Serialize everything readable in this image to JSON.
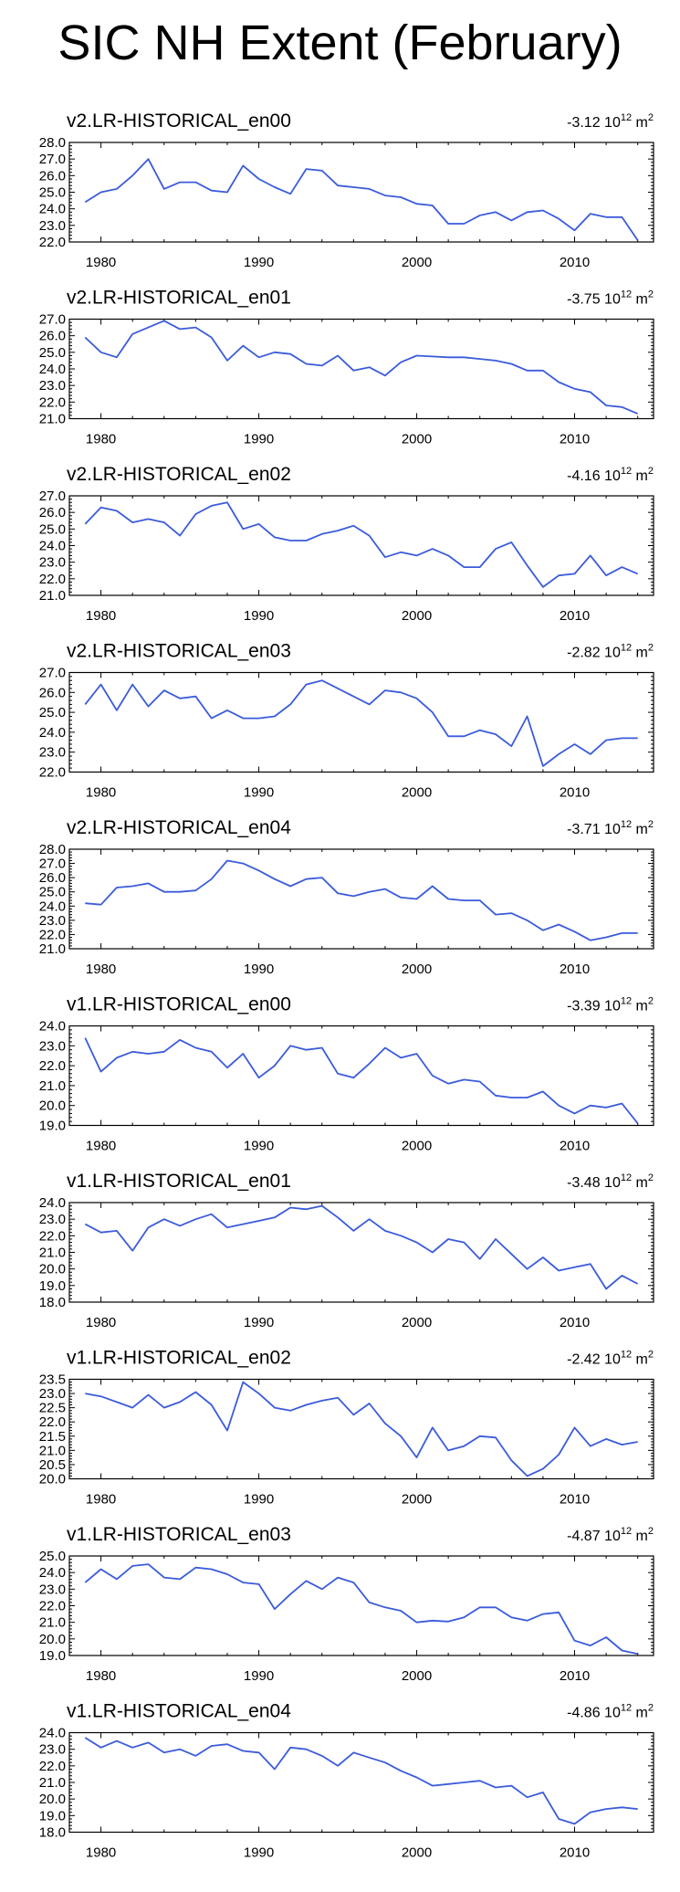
{
  "figure_title": "SIC NH Extent (February)",
  "colors": {
    "series": "#3b5bdb",
    "axes": "#000000"
  },
  "chart_data": [
    {
      "type": "line",
      "title": "v2.LR-HISTORICAL_en00",
      "trend": {
        "value": "-3.12",
        "exp": "12",
        "unit": "10",
        "unit_tail": "m",
        "unit_exp": "2"
      },
      "xlim": [
        1978,
        2015
      ],
      "xticks": [
        1980,
        1990,
        2000,
        2010
      ],
      "ylim": [
        22.0,
        28.0
      ],
      "yticks": [
        "22.0",
        "23.0",
        "24.0",
        "25.0",
        "26.0",
        "27.0",
        "28.0"
      ],
      "x": [
        1979,
        1980,
        1981,
        1982,
        1983,
        1984,
        1985,
        1986,
        1987,
        1988,
        1989,
        1990,
        1991,
        1992,
        1993,
        1994,
        1995,
        1996,
        1997,
        1998,
        1999,
        2000,
        2001,
        2002,
        2003,
        2004,
        2005,
        2006,
        2007,
        2008,
        2009,
        2010,
        2011,
        2012,
        2013,
        2014
      ],
      "values": [
        24.4,
        25.0,
        25.2,
        26.0,
        27.0,
        25.2,
        25.6,
        25.6,
        25.1,
        25.0,
        26.6,
        25.8,
        25.3,
        24.9,
        26.4,
        26.3,
        25.4,
        25.3,
        25.2,
        24.8,
        24.7,
        24.3,
        24.2,
        23.1,
        23.1,
        23.6,
        23.8,
        23.3,
        23.8,
        23.9,
        23.4,
        22.7,
        23.7,
        23.5,
        23.5,
        22.1
      ]
    },
    {
      "type": "line",
      "title": "v2.LR-HISTORICAL_en01",
      "trend": {
        "value": "-3.75",
        "exp": "12",
        "unit": "10",
        "unit_tail": "m",
        "unit_exp": "2"
      },
      "xlim": [
        1978,
        2015
      ],
      "xticks": [
        1980,
        1990,
        2000,
        2010
      ],
      "ylim": [
        21.0,
        27.0
      ],
      "yticks": [
        "21.0",
        "22.0",
        "23.0",
        "24.0",
        "25.0",
        "26.0",
        "27.0"
      ],
      "x": [
        1979,
        1980,
        1981,
        1982,
        1983,
        1984,
        1985,
        1986,
        1987,
        1988,
        1989,
        1990,
        1991,
        1992,
        1993,
        1994,
        1995,
        1996,
        1997,
        1998,
        1999,
        2000,
        2001,
        2002,
        2003,
        2004,
        2005,
        2006,
        2007,
        2008,
        2009,
        2010,
        2011,
        2012,
        2013,
        2014
      ],
      "values": [
        25.9,
        25.0,
        24.7,
        26.1,
        26.5,
        26.9,
        26.4,
        26.5,
        25.9,
        24.5,
        25.4,
        24.7,
        25.0,
        24.9,
        24.3,
        24.2,
        24.8,
        23.9,
        24.1,
        23.6,
        24.4,
        24.8,
        24.75,
        24.7,
        24.7,
        24.6,
        24.5,
        24.3,
        23.9,
        23.9,
        23.2,
        22.8,
        22.6,
        21.8,
        21.7,
        21.3
      ]
    },
    {
      "type": "line",
      "title": "v2.LR-HISTORICAL_en02",
      "trend": {
        "value": "-4.16",
        "exp": "12",
        "unit": "10",
        "unit_tail": "m",
        "unit_exp": "2"
      },
      "xlim": [
        1978,
        2015
      ],
      "xticks": [
        1980,
        1990,
        2000,
        2010
      ],
      "ylim": [
        21.0,
        27.0
      ],
      "yticks": [
        "21.0",
        "22.0",
        "23.0",
        "24.0",
        "25.0",
        "26.0",
        "27.0"
      ],
      "x": [
        1979,
        1980,
        1981,
        1982,
        1983,
        1984,
        1985,
        1986,
        1987,
        1988,
        1989,
        1990,
        1991,
        1992,
        1993,
        1994,
        1995,
        1996,
        1997,
        1998,
        1999,
        2000,
        2001,
        2002,
        2003,
        2004,
        2005,
        2006,
        2007,
        2008,
        2009,
        2010,
        2011,
        2012,
        2013,
        2014
      ],
      "values": [
        25.3,
        26.3,
        26.1,
        25.4,
        25.6,
        25.4,
        24.6,
        25.9,
        26.4,
        26.6,
        25.0,
        25.3,
        24.5,
        24.3,
        24.3,
        24.7,
        24.9,
        25.2,
        24.6,
        23.3,
        23.6,
        23.4,
        23.8,
        23.4,
        22.7,
        22.7,
        23.8,
        24.2,
        22.8,
        21.5,
        22.2,
        22.3,
        23.4,
        22.2,
        22.7,
        22.3
      ]
    },
    {
      "type": "line",
      "title": "v2.LR-HISTORICAL_en03",
      "trend": {
        "value": "-2.82",
        "exp": "12",
        "unit": "10",
        "unit_tail": "m",
        "unit_exp": "2"
      },
      "xlim": [
        1978,
        2015
      ],
      "xticks": [
        1980,
        1990,
        2000,
        2010
      ],
      "ylim": [
        22.0,
        27.0
      ],
      "yticks": [
        "22.0",
        "23.0",
        "24.0",
        "25.0",
        "26.0",
        "27.0"
      ],
      "x": [
        1979,
        1980,
        1981,
        1982,
        1983,
        1984,
        1985,
        1986,
        1987,
        1988,
        1989,
        1990,
        1991,
        1992,
        1993,
        1994,
        1995,
        1996,
        1997,
        1998,
        1999,
        2000,
        2001,
        2002,
        2003,
        2004,
        2005,
        2006,
        2007,
        2008,
        2009,
        2010,
        2011,
        2012,
        2013,
        2014
      ],
      "values": [
        25.4,
        26.4,
        25.1,
        26.4,
        25.3,
        26.1,
        25.7,
        25.8,
        24.7,
        25.1,
        24.7,
        24.7,
        24.8,
        25.4,
        26.4,
        26.6,
        26.2,
        25.8,
        25.4,
        26.1,
        26.0,
        25.7,
        25.0,
        23.8,
        23.8,
        24.1,
        23.9,
        23.3,
        24.8,
        22.3,
        22.9,
        23.4,
        22.9,
        23.6,
        23.7,
        23.7
      ]
    },
    {
      "type": "line",
      "title": "v2.LR-HISTORICAL_en04",
      "trend": {
        "value": "-3.71",
        "exp": "12",
        "unit": "10",
        "unit_tail": "m",
        "unit_exp": "2"
      },
      "xlim": [
        1978,
        2015
      ],
      "xticks": [
        1980,
        1990,
        2000,
        2010
      ],
      "ylim": [
        21.0,
        28.0
      ],
      "yticks": [
        "21.0",
        "22.0",
        "23.0",
        "24.0",
        "25.0",
        "26.0",
        "27.0",
        "28.0"
      ],
      "x": [
        1979,
        1980,
        1981,
        1982,
        1983,
        1984,
        1985,
        1986,
        1987,
        1988,
        1989,
        1990,
        1991,
        1992,
        1993,
        1994,
        1995,
        1996,
        1997,
        1998,
        1999,
        2000,
        2001,
        2002,
        2003,
        2004,
        2005,
        2006,
        2007,
        2008,
        2009,
        2010,
        2011,
        2012,
        2013,
        2014
      ],
      "values": [
        24.2,
        24.1,
        25.3,
        25.4,
        25.6,
        25.0,
        25.0,
        25.1,
        25.9,
        27.2,
        27.0,
        26.5,
        25.9,
        25.4,
        25.9,
        26.0,
        24.9,
        24.7,
        25.0,
        25.2,
        24.6,
        24.5,
        25.4,
        24.5,
        24.4,
        24.4,
        23.4,
        23.5,
        23.0,
        22.3,
        22.7,
        22.2,
        21.6,
        21.8,
        22.1,
        22.1
      ]
    },
    {
      "type": "line",
      "title": "v1.LR-HISTORICAL_en00",
      "trend": {
        "value": "-3.39",
        "exp": "12",
        "unit": "10",
        "unit_tail": "m",
        "unit_exp": "2"
      },
      "xlim": [
        1978,
        2015
      ],
      "xticks": [
        1980,
        1990,
        2000,
        2010
      ],
      "ylim": [
        19.0,
        24.0
      ],
      "yticks": [
        "19.0",
        "20.0",
        "21.0",
        "22.0",
        "23.0",
        "24.0"
      ],
      "x": [
        1979,
        1980,
        1981,
        1982,
        1983,
        1984,
        1985,
        1986,
        1987,
        1988,
        1989,
        1990,
        1991,
        1992,
        1993,
        1994,
        1995,
        1996,
        1997,
        1998,
        1999,
        2000,
        2001,
        2002,
        2003,
        2004,
        2005,
        2006,
        2007,
        2008,
        2009,
        2010,
        2011,
        2012,
        2013,
        2014
      ],
      "values": [
        23.4,
        21.7,
        22.4,
        22.7,
        22.6,
        22.7,
        23.3,
        22.9,
        22.7,
        21.9,
        22.6,
        21.4,
        22.0,
        23.0,
        22.8,
        22.9,
        21.6,
        21.4,
        22.1,
        22.9,
        22.4,
        22.6,
        21.5,
        21.1,
        21.3,
        21.2,
        20.5,
        20.4,
        20.4,
        20.7,
        20.0,
        19.6,
        20.0,
        19.9,
        20.1,
        19.1
      ]
    },
    {
      "type": "line",
      "title": "v1.LR-HISTORICAL_en01",
      "trend": {
        "value": "-3.48",
        "exp": "12",
        "unit": "10",
        "unit_tail": "m",
        "unit_exp": "2"
      },
      "xlim": [
        1978,
        2015
      ],
      "xticks": [
        1980,
        1990,
        2000,
        2010
      ],
      "ylim": [
        18.0,
        24.0
      ],
      "yticks": [
        "18.0",
        "19.0",
        "20.0",
        "21.0",
        "22.0",
        "23.0",
        "24.0"
      ],
      "x": [
        1979,
        1980,
        1981,
        1982,
        1983,
        1984,
        1985,
        1986,
        1987,
        1988,
        1989,
        1990,
        1991,
        1992,
        1993,
        1994,
        1995,
        1996,
        1997,
        1998,
        1999,
        2000,
        2001,
        2002,
        2003,
        2004,
        2005,
        2006,
        2007,
        2008,
        2009,
        2010,
        2011,
        2012,
        2013,
        2014
      ],
      "values": [
        22.7,
        22.2,
        22.3,
        21.1,
        22.5,
        23.0,
        22.6,
        23.0,
        23.3,
        22.5,
        22.7,
        22.9,
        23.1,
        23.7,
        23.6,
        23.8,
        23.1,
        22.3,
        23.0,
        22.3,
        22.0,
        21.6,
        21.0,
        21.8,
        21.6,
        20.6,
        21.8,
        20.9,
        20.0,
        20.7,
        19.9,
        20.1,
        20.3,
        18.8,
        19.6,
        19.1
      ]
    },
    {
      "type": "line",
      "title": "v1.LR-HISTORICAL_en02",
      "trend": {
        "value": "-2.42",
        "exp": "12",
        "unit": "10",
        "unit_tail": "m",
        "unit_exp": "2"
      },
      "xlim": [
        1978,
        2015
      ],
      "xticks": [
        1980,
        1990,
        2000,
        2010
      ],
      "ylim": [
        20.0,
        23.5
      ],
      "yticks": [
        "20.0",
        "20.5",
        "21.0",
        "21.5",
        "22.0",
        "22.5",
        "23.0",
        "23.5"
      ],
      "x": [
        1979,
        1980,
        1981,
        1982,
        1983,
        1984,
        1985,
        1986,
        1987,
        1988,
        1989,
        1990,
        1991,
        1992,
        1993,
        1994,
        1995,
        1996,
        1997,
        1998,
        1999,
        2000,
        2001,
        2002,
        2003,
        2004,
        2005,
        2006,
        2007,
        2008,
        2009,
        2010,
        2011,
        2012,
        2013,
        2014
      ],
      "values": [
        23.0,
        22.9,
        22.7,
        22.5,
        22.95,
        22.5,
        22.7,
        23.05,
        22.6,
        21.7,
        23.4,
        23.0,
        22.5,
        22.4,
        22.6,
        22.75,
        22.85,
        22.25,
        22.65,
        21.95,
        21.5,
        20.75,
        21.8,
        21.0,
        21.15,
        21.5,
        21.45,
        20.65,
        20.1,
        20.35,
        20.85,
        21.8,
        21.15,
        21.4,
        21.2,
        21.3
      ]
    },
    {
      "type": "line",
      "title": "v1.LR-HISTORICAL_en03",
      "trend": {
        "value": "-4.87",
        "exp": "12",
        "unit": "10",
        "unit_tail": "m",
        "unit_exp": "2"
      },
      "xlim": [
        1978,
        2015
      ],
      "xticks": [
        1980,
        1990,
        2000,
        2010
      ],
      "ylim": [
        19.0,
        25.0
      ],
      "yticks": [
        "19.0",
        "20.0",
        "21.0",
        "22.0",
        "23.0",
        "24.0",
        "25.0"
      ],
      "x": [
        1979,
        1980,
        1981,
        1982,
        1983,
        1984,
        1985,
        1986,
        1987,
        1988,
        1989,
        1990,
        1991,
        1992,
        1993,
        1994,
        1995,
        1996,
        1997,
        1998,
        1999,
        2000,
        2001,
        2002,
        2003,
        2004,
        2005,
        2006,
        2007,
        2008,
        2009,
        2010,
        2011,
        2012,
        2013,
        2014
      ],
      "values": [
        23.4,
        24.2,
        23.6,
        24.4,
        24.5,
        23.7,
        23.6,
        24.3,
        24.2,
        23.9,
        23.4,
        23.3,
        21.8,
        22.7,
        23.5,
        23.0,
        23.7,
        23.4,
        22.2,
        21.9,
        21.7,
        21.0,
        21.1,
        21.05,
        21.3,
        21.9,
        21.9,
        21.3,
        21.1,
        21.5,
        21.6,
        19.9,
        19.6,
        20.1,
        19.3,
        19.1
      ]
    },
    {
      "type": "line",
      "title": "v1.LR-HISTORICAL_en04",
      "trend": {
        "value": "-4.86",
        "exp": "12",
        "unit": "10",
        "unit_tail": "m",
        "unit_exp": "2"
      },
      "xlim": [
        1978,
        2015
      ],
      "xticks": [
        1980,
        1990,
        2000,
        2010
      ],
      "ylim": [
        18.0,
        24.0
      ],
      "yticks": [
        "18.0",
        "19.0",
        "20.0",
        "21.0",
        "22.0",
        "23.0",
        "24.0"
      ],
      "x": [
        1979,
        1980,
        1981,
        1982,
        1983,
        1984,
        1985,
        1986,
        1987,
        1988,
        1989,
        1990,
        1991,
        1992,
        1993,
        1994,
        1995,
        1996,
        1997,
        1998,
        1999,
        2000,
        2001,
        2002,
        2003,
        2004,
        2005,
        2006,
        2007,
        2008,
        2009,
        2010,
        2011,
        2012,
        2013,
        2014
      ],
      "values": [
        23.7,
        23.1,
        23.5,
        23.1,
        23.4,
        22.8,
        23.0,
        22.6,
        23.2,
        23.3,
        22.9,
        22.8,
        21.8,
        23.1,
        23.0,
        22.6,
        22.0,
        22.8,
        22.5,
        22.2,
        21.7,
        21.3,
        20.8,
        20.9,
        21.0,
        21.1,
        20.7,
        20.8,
        20.1,
        20.4,
        18.8,
        18.5,
        19.2,
        19.4,
        19.5,
        19.4
      ]
    }
  ]
}
